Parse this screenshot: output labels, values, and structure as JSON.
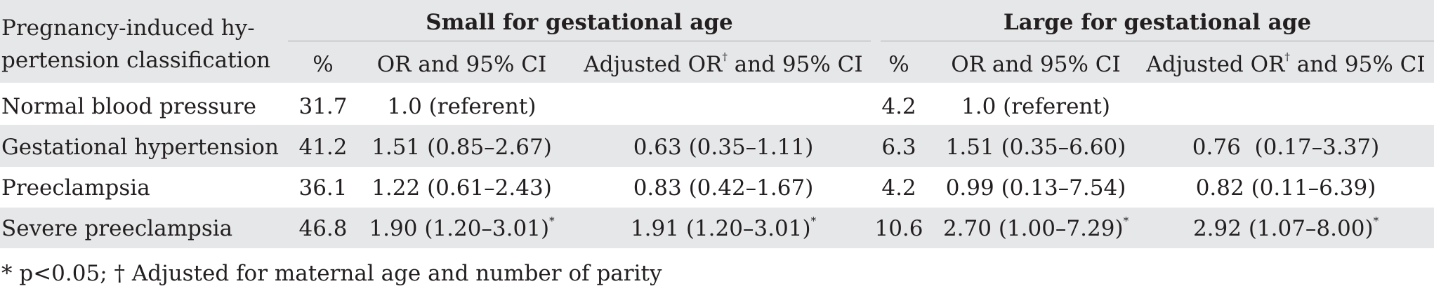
{
  "table": {
    "row_header": {
      "line1": "Pregnancy-induced hy-",
      "line2": "pertension classification"
    },
    "groups": {
      "sga": "Small for gestational age",
      "lga": "Large for gestational age"
    },
    "columns": {
      "pct": "%",
      "or": "OR and 95% CI",
      "adj_pre": "Adjusted OR",
      "adj_sup": "†",
      "adj_post": " and 95% CI"
    },
    "rows": [
      {
        "label": "Normal blood pressure",
        "sga_pct": "31.7",
        "sga_or": "1.0 (referent)",
        "sga_or_sup": "",
        "sga_adj": "",
        "sga_adj_sup": "",
        "lga_pct": "4.2",
        "lga_or": "1.0 (referent)",
        "lga_or_sup": "",
        "lga_adj": "",
        "lga_adj_sup": ""
      },
      {
        "label": "Gestational hypertension",
        "sga_pct": "41.2",
        "sga_or": "1.51 (0.85–2.67)",
        "sga_or_sup": "",
        "sga_adj": "0.63 (0.35–1.11)",
        "sga_adj_sup": "",
        "lga_pct": "6.3",
        "lga_or": "1.51 (0.35–6.60)",
        "lga_or_sup": "",
        "lga_adj": "0.76  (0.17–3.37)",
        "lga_adj_sup": ""
      },
      {
        "label": "Preeclampsia",
        "sga_pct": "36.1",
        "sga_or": "1.22 (0.61–2.43)",
        "sga_or_sup": "",
        "sga_adj": "0.83 (0.42–1.67)",
        "sga_adj_sup": "",
        "lga_pct": "4.2",
        "lga_or": "0.99 (0.13–7.54)",
        "lga_or_sup": "",
        "lga_adj": "0.82 (0.11–6.39)",
        "lga_adj_sup": ""
      },
      {
        "label": "Severe preeclampsia",
        "sga_pct": "46.8",
        "sga_or": "1.90 (1.20–3.01)",
        "sga_or_sup": "*",
        "sga_adj": "1.91 (1.20–3.01)",
        "sga_adj_sup": "*",
        "lga_pct": "10.6",
        "lga_or": "2.70 (1.00–7.29)",
        "lga_or_sup": "*",
        "lga_adj": "2.92 (1.07–8.00)",
        "lga_adj_sup": "*"
      }
    ],
    "footnote": "* p<0.05; † Adjusted for maternal age and number of parity"
  }
}
